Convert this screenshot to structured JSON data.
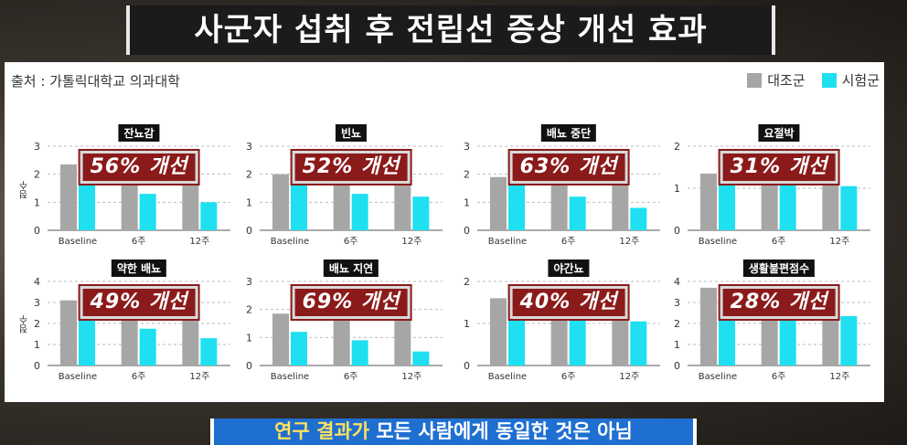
{
  "title": "사군자 섭취 후 전립선 증상 개선 효과",
  "source": "출처 : 가톨릭대학교 의과대학",
  "legend": [
    {
      "label": "대조군",
      "color": "#a6a6a6"
    },
    {
      "label": "시험군",
      "color": "#1ee0f0"
    }
  ],
  "y_axis_label": "점수",
  "caption": {
    "highlight": "연구 결과가",
    "rest": " 모든 사람에게 동일한 것은 아님"
  },
  "chart_data": [
    {
      "type": "bar",
      "title": "잔뇨감",
      "badge": "56% 개선",
      "categories": [
        "Baseline",
        "6주",
        "12주"
      ],
      "ylim": [
        0,
        3
      ],
      "yticks": [
        0,
        1,
        2,
        3
      ],
      "series": [
        {
          "name": "대조군",
          "values": [
            2.35,
            1.95,
            1.85
          ]
        },
        {
          "name": "시험군",
          "values": [
            2.0,
            1.3,
            1.0
          ]
        }
      ]
    },
    {
      "type": "bar",
      "title": "빈뇨",
      "badge": "52% 개선",
      "categories": [
        "Baseline",
        "6주",
        "12주"
      ],
      "ylim": [
        0,
        3
      ],
      "yticks": [
        0,
        1,
        2,
        3
      ],
      "series": [
        {
          "name": "대조군",
          "values": [
            2.0,
            1.95,
            1.85
          ]
        },
        {
          "name": "시험군",
          "values": [
            2.1,
            1.3,
            1.2
          ]
        }
      ]
    },
    {
      "type": "bar",
      "title": "배뇨 중단",
      "badge": "63% 개선",
      "categories": [
        "Baseline",
        "6주",
        "12주"
      ],
      "ylim": [
        0,
        3
      ],
      "yticks": [
        0,
        1,
        2,
        3
      ],
      "series": [
        {
          "name": "대조군",
          "values": [
            1.9,
            1.9,
            1.9
          ]
        },
        {
          "name": "시험군",
          "values": [
            2.05,
            1.2,
            0.8
          ]
        }
      ]
    },
    {
      "type": "bar",
      "title": "요절박",
      "badge": "31% 개선",
      "categories": [
        "Baseline",
        "6주",
        "12주"
      ],
      "ylim": [
        0,
        2
      ],
      "yticks": [
        0,
        1,
        2
      ],
      "series": [
        {
          "name": "대조군",
          "values": [
            1.35,
            1.35,
            1.3
          ]
        },
        {
          "name": "시험군",
          "values": [
            1.75,
            1.25,
            1.05
          ]
        }
      ]
    },
    {
      "type": "bar",
      "title": "약한 배뇨",
      "badge": "49% 개선",
      "categories": [
        "Baseline",
        "6주",
        "12주"
      ],
      "ylim": [
        0,
        4
      ],
      "yticks": [
        0,
        1,
        2,
        3,
        4
      ],
      "series": [
        {
          "name": "대조군",
          "values": [
            3.1,
            2.6,
            2.4
          ]
        },
        {
          "name": "시험군",
          "values": [
            2.6,
            1.75,
            1.3
          ]
        }
      ]
    },
    {
      "type": "bar",
      "title": "배뇨 지연",
      "badge": "69% 개선",
      "categories": [
        "Baseline",
        "6주",
        "12주"
      ],
      "ylim": [
        0,
        3
      ],
      "yticks": [
        0,
        1,
        2,
        3
      ],
      "series": [
        {
          "name": "대조군",
          "values": [
            1.85,
            1.8,
            1.75
          ]
        },
        {
          "name": "시험군",
          "values": [
            1.2,
            0.9,
            0.5
          ]
        }
      ]
    },
    {
      "type": "bar",
      "title": "야간뇨",
      "badge": "40% 개선",
      "categories": [
        "Baseline",
        "6주",
        "12주"
      ],
      "ylim": [
        0,
        2
      ],
      "yticks": [
        0,
        1,
        2
      ],
      "series": [
        {
          "name": "대조군",
          "values": [
            1.6,
            1.55,
            1.55
          ]
        },
        {
          "name": "시험군",
          "values": [
            1.45,
            1.2,
            1.05
          ]
        }
      ]
    },
    {
      "type": "bar",
      "title": "생활불편점수",
      "badge": "28% 개선",
      "categories": [
        "Baseline",
        "6주",
        "12주"
      ],
      "ylim": [
        0,
        4
      ],
      "yticks": [
        0,
        1,
        2,
        3,
        4
      ],
      "series": [
        {
          "name": "대조군",
          "values": [
            3.7,
            3.0,
            2.9
          ]
        },
        {
          "name": "시험군",
          "values": [
            3.0,
            2.6,
            2.35
          ]
        }
      ]
    }
  ]
}
